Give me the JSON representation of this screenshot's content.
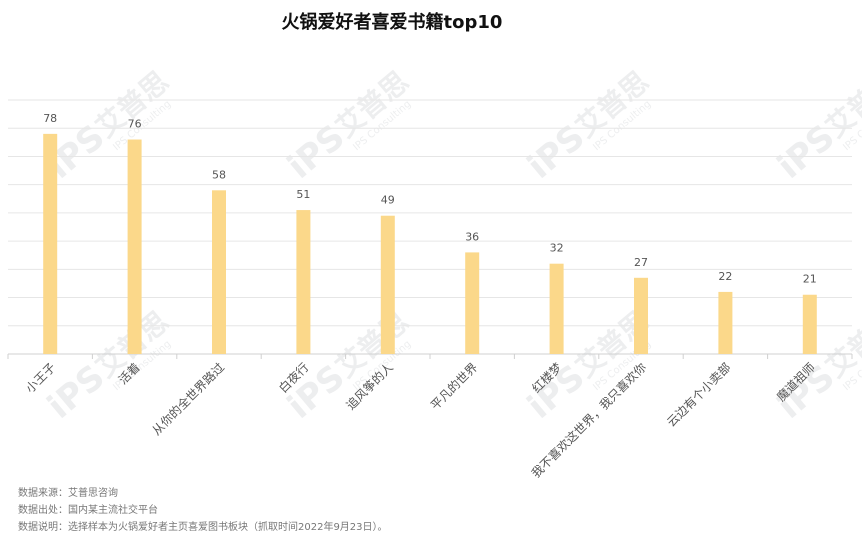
{
  "title": "火锅爱好者喜爱书籍top10",
  "chart_data": {
    "type": "bar",
    "title": "火锅爱好者喜爱书籍top10",
    "categories": [
      "小王子",
      "活着",
      "从你的全世界路过",
      "白夜行",
      "追风筝的人",
      "平凡的世界",
      "红楼梦",
      "我不喜欢这世界，我只喜欢你",
      "云边有个小卖部",
      "魔道祖师"
    ],
    "values": [
      78,
      76,
      58,
      51,
      49,
      36,
      32,
      27,
      22,
      21
    ],
    "ylim": [
      0,
      90
    ],
    "xlabel": "",
    "ylabel": "",
    "grid": true,
    "bar_color": "#FBD88A"
  },
  "footnotes": {
    "source": "数据来源：艾普思咨询",
    "origin": "数据出处：国内某主流社交平台",
    "note": "数据说明：选择样本为火锅爱好者主页喜爱图书板块（抓取时间2022年9月23日）。"
  },
  "watermark": {
    "text": "艾普思",
    "subtext": "IPS Consulting",
    "logo": "iPS"
  },
  "colors": {
    "bar": "#FBD88A",
    "grid": "#E6E6E6",
    "axis": "#D0D0D0",
    "text": "#555555"
  }
}
